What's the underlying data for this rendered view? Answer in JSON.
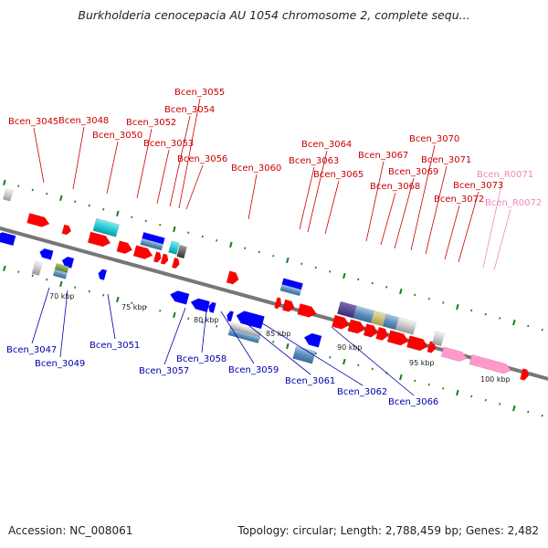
{
  "title": "Burkholderia cenocepacia AU 1054 chromosome 2, complete sequ...",
  "footer": {
    "accession": "Accession: NC_008061",
    "summary": "Topology: circular; Length: 2,788,459 bp; Genes: 2,482"
  },
  "colors": {
    "forward_cds": "#ff0000",
    "reverse_cds": "#0000ff",
    "rna": "#ff99cc",
    "forward_label": "#cc0000",
    "reverse_label": "#0000aa",
    "rna_label": "#ee88bb",
    "backbone": "#888888",
    "tick": "#1a7a1a"
  },
  "scale_labels": [
    "70 kbp",
    "75 kbp",
    "80 kbp",
    "85 kbp",
    "90 kbp",
    "95 kbp",
    "100 kbp"
  ],
  "gene_labels": {
    "top": [
      "Bcen_3045",
      "Bcen_3048",
      "Bcen_3050",
      "Bcen_3052",
      "Bcen_3053",
      "Bcen_3054",
      "Bcen_3055",
      "Bcen_3056",
      "Bcen_3060",
      "Bcen_3063",
      "Bcen_3064",
      "Bcen_3065",
      "Bcen_3067",
      "Bcen_3068",
      "Bcen_3069",
      "Bcen_3070",
      "Bcen_3071",
      "Bcen_3072",
      "Bcen_3073",
      "Bcen_R0071",
      "Bcen_R0072"
    ],
    "bottom": [
      "Bcen_3047",
      "Bcen_3049",
      "Bcen_3051",
      "Bcen_3057",
      "Bcen_3058",
      "Bcen_3059",
      "Bcen_3061",
      "Bcen_3062",
      "Bcen_3066"
    ]
  }
}
